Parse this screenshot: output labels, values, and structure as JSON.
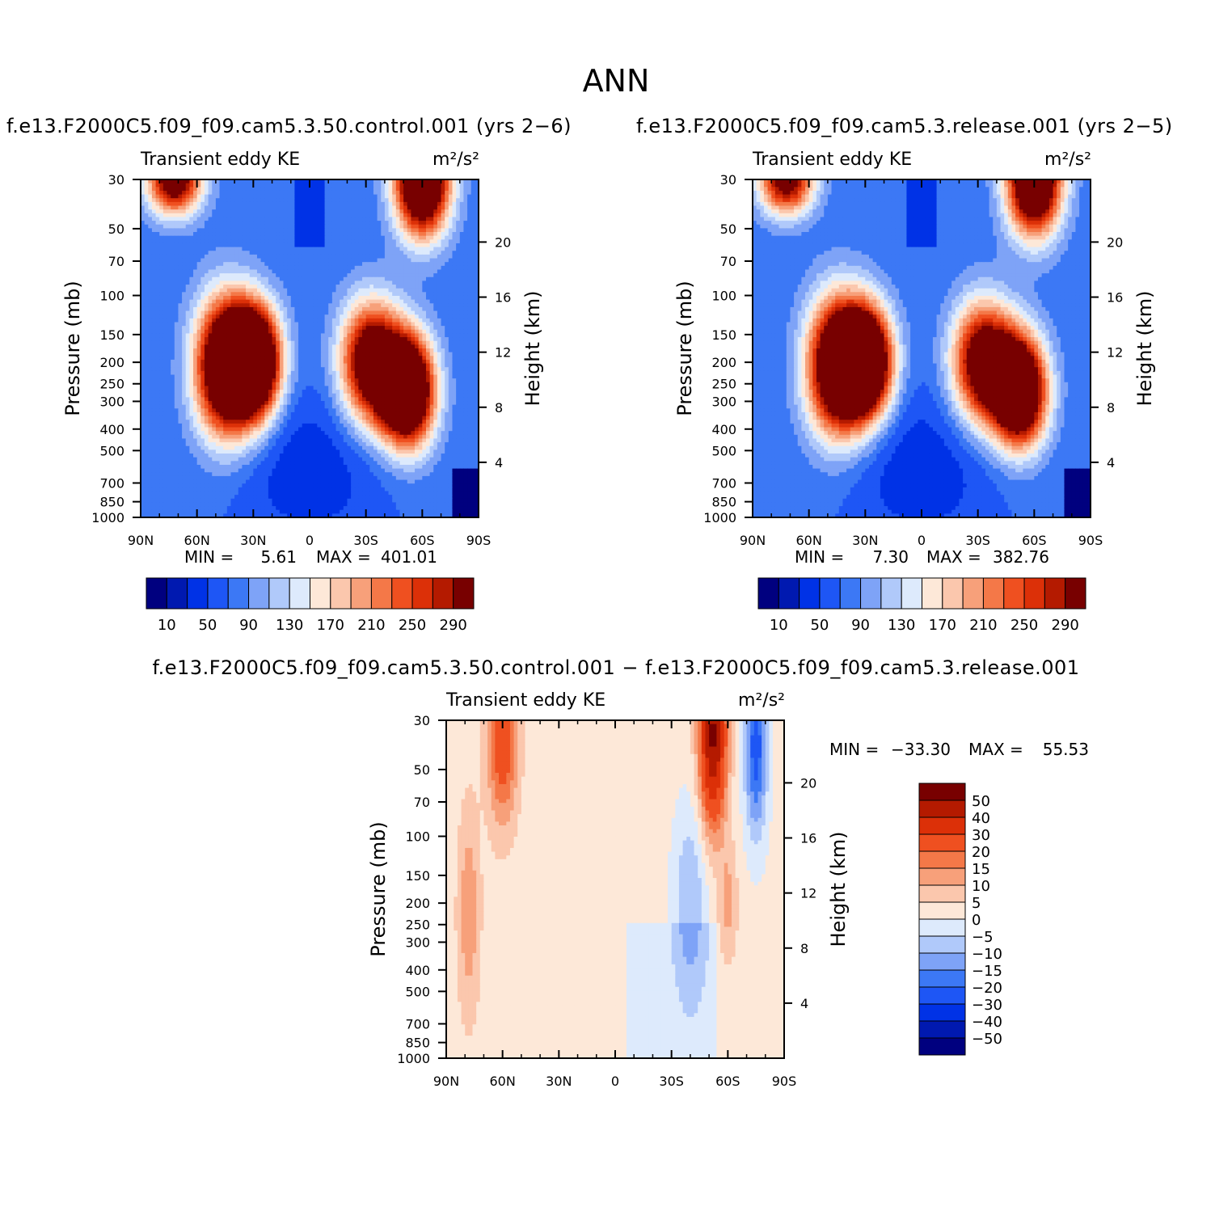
{
  "page_title": "ANN",
  "colors": {
    "abs_palette": [
      "#00007f",
      "#0019b0",
      "#0032e6",
      "#1e56f5",
      "#3c78f5",
      "#7ea3f7",
      "#b0c9fa",
      "#ddeafc",
      "#fde8d8",
      "#fbc7ad",
      "#f7a07a",
      "#f47848",
      "#ef5020",
      "#dc3008",
      "#b41a00",
      "#780000"
    ],
    "diff_palette": [
      "#00007f",
      "#0019b0",
      "#0032e6",
      "#1e56f5",
      "#3c78f5",
      "#7ea3f7",
      "#b0c9fa",
      "#ddeafc",
      "#fde8d8",
      "#fbc7ad",
      "#f7a07a",
      "#f47848",
      "#ef5020",
      "#dc3008",
      "#b41a00",
      "#780000"
    ]
  },
  "chart_data": [
    {
      "id": "control",
      "type": "heatmap",
      "title": "f.e13.F2000C5.f09_f09.cam5.3.50.control.001 (yrs 2−6)",
      "left_label": "Transient eddy KE",
      "right_label": "m²/s²",
      "ylabel": "Pressure (mb)",
      "ylabel_right": "Height (km)",
      "x_ticks": [
        "90N",
        "60N",
        "30N",
        "0",
        "30S",
        "60S",
        "90S"
      ],
      "x_values": [
        90,
        60,
        30,
        0,
        -30,
        -60,
        -90
      ],
      "p_ticks": [
        30,
        50,
        70,
        100,
        150,
        200,
        250,
        300,
        400,
        500,
        700,
        850,
        1000
      ],
      "height_ticks": [
        20,
        16,
        12,
        8,
        4
      ],
      "stats": {
        "min_label": "MIN =",
        "min": "5.61",
        "max_label": "MAX =",
        "max": "401.01"
      },
      "colorbar_labels": [
        "10",
        "50",
        "90",
        "130",
        "170",
        "210",
        "250",
        "290"
      ],
      "features": [
        {
          "lat": 45,
          "p": 210,
          "peak": 330
        },
        {
          "lat": 30,
          "p": 200,
          "peak": 400
        },
        {
          "lat": -33,
          "p": 200,
          "peak": 300
        },
        {
          "lat": -52,
          "p": 270,
          "peak": 395
        },
        {
          "lat": 72,
          "p": 30,
          "peak": 280
        },
        {
          "lat": -60,
          "p": 30,
          "peak": 390
        }
      ]
    },
    {
      "id": "release",
      "type": "heatmap",
      "title": "f.e13.F2000C5.f09_f09.cam5.3.release.001 (yrs 2−5)",
      "left_label": "Transient eddy KE",
      "right_label": "m²/s²",
      "ylabel": "Pressure (mb)",
      "ylabel_right": "Height (km)",
      "x_ticks": [
        "90N",
        "60N",
        "30N",
        "0",
        "30S",
        "60S",
        "90S"
      ],
      "x_values": [
        90,
        60,
        30,
        0,
        -30,
        -60,
        -90
      ],
      "p_ticks": [
        30,
        50,
        70,
        100,
        150,
        200,
        250,
        300,
        400,
        500,
        700,
        850,
        1000
      ],
      "height_ticks": [
        20,
        16,
        12,
        8,
        4
      ],
      "stats": {
        "min_label": "MIN =",
        "min": "7.30",
        "max_label": "MAX =",
        "max": "382.76"
      },
      "colorbar_labels": [
        "10",
        "50",
        "90",
        "130",
        "170",
        "210",
        "250",
        "290"
      ],
      "features": [
        {
          "lat": 45,
          "p": 210,
          "peak": 320
        },
        {
          "lat": 30,
          "p": 200,
          "peak": 380
        },
        {
          "lat": -33,
          "p": 200,
          "peak": 290
        },
        {
          "lat": -52,
          "p": 270,
          "peak": 380
        },
        {
          "lat": 72,
          "p": 30,
          "peak": 260
        },
        {
          "lat": -60,
          "p": 30,
          "peak": 370
        }
      ]
    },
    {
      "id": "difference",
      "type": "heatmap",
      "title": "f.e13.F2000C5.f09_f09.cam5.3.50.control.001 − f.e13.F2000C5.f09_f09.cam5.3.release.001",
      "left_label": "Transient eddy KE",
      "right_label": "m²/s²",
      "ylabel": "Pressure (mb)",
      "ylabel_right": "Height (km)",
      "x_ticks": [
        "90N",
        "60N",
        "30N",
        "0",
        "30S",
        "60S",
        "90S"
      ],
      "x_values": [
        90,
        60,
        30,
        0,
        -30,
        -60,
        -90
      ],
      "p_ticks": [
        30,
        50,
        70,
        100,
        150,
        200,
        250,
        300,
        400,
        500,
        700,
        850,
        1000
      ],
      "height_ticks": [
        20,
        16,
        12,
        8,
        4
      ],
      "stats": {
        "min_label": "MIN =",
        "min": "−33.30",
        "max_label": "MAX =",
        "max": "55.53"
      },
      "colorbar_labels": [
        "50",
        "40",
        "30",
        "20",
        "15",
        "10",
        "5",
        "0",
        "−5",
        "−10",
        "−15",
        "−20",
        "−30",
        "−40",
        "−50"
      ],
      "features": [
        {
          "lat": 60,
          "p": 35,
          "peak": 25
        },
        {
          "lat": -52,
          "p": 35,
          "peak": 50
        },
        {
          "lat": -75,
          "p": 40,
          "peak": -25
        },
        {
          "lat": 78,
          "p": 220,
          "peak": 12
        },
        {
          "lat": -60,
          "p": 200,
          "peak": 10
        },
        {
          "lat": -40,
          "p": 200,
          "peak": -12
        }
      ]
    }
  ]
}
